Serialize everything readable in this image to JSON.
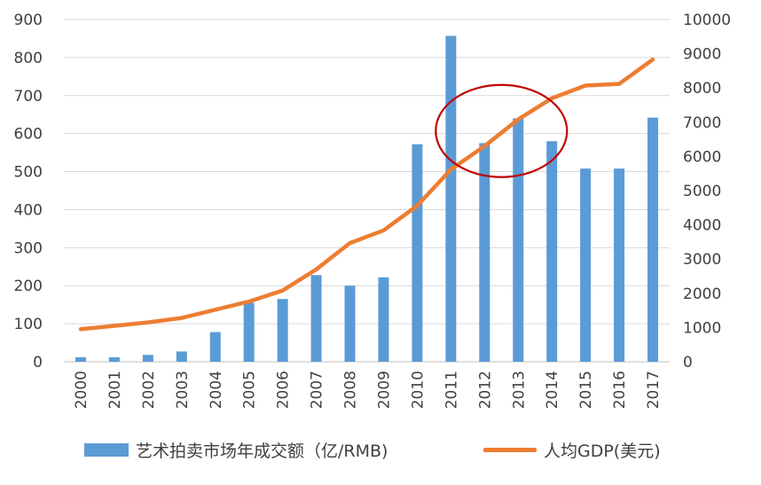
{
  "chart_data": {
    "type": "bar",
    "categories": [
      "2000",
      "2001",
      "2002",
      "2003",
      "2004",
      "2005",
      "2006",
      "2007",
      "2008",
      "2009",
      "2010",
      "2011",
      "2012",
      "2013",
      "2014",
      "2015",
      "2016",
      "2017"
    ],
    "series": [
      {
        "name": "艺术拍卖市场年成交额（亿/RMB)",
        "type": "bar",
        "axis": "left",
        "color": "#5b9bd5",
        "values": [
          12,
          12,
          18,
          27,
          78,
          155,
          165,
          228,
          200,
          222,
          572,
          857,
          575,
          640,
          580,
          508,
          508,
          642
        ]
      },
      {
        "name": "人均GDP(美元)",
        "type": "line",
        "axis": "right",
        "color": "#ed7d31",
        "values": [
          950,
          1050,
          1150,
          1280,
          1520,
          1760,
          2080,
          2700,
          3470,
          3840,
          4560,
          5620,
          6300,
          7080,
          7700,
          8070,
          8120,
          8830
        ]
      }
    ],
    "y_left": {
      "min": 0,
      "max": 900,
      "step": 100,
      "ticks": [
        "0",
        "100",
        "200",
        "300",
        "400",
        "500",
        "600",
        "700",
        "800",
        "900"
      ]
    },
    "y_right": {
      "min": 0,
      "max": 10000,
      "step": 1000,
      "ticks": [
        "0",
        "1000",
        "2000",
        "3000",
        "4000",
        "5000",
        "6000",
        "7000",
        "8000",
        "9000",
        "10000"
      ]
    },
    "grid": true,
    "legend_position": "bottom",
    "annotation": {
      "shape": "ellipse",
      "color": "#c00000",
      "around_categories": [
        "2012",
        "2013"
      ]
    }
  }
}
